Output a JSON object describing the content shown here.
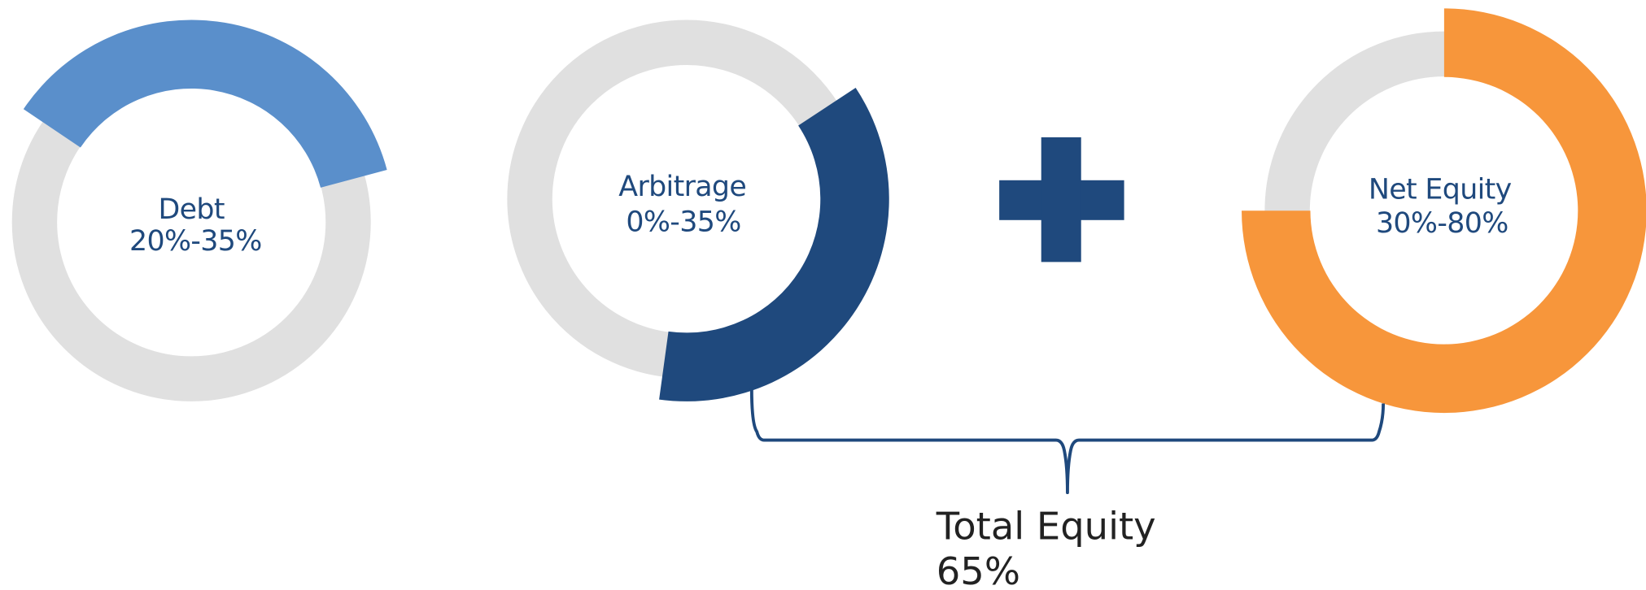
{
  "donuts": [
    {
      "label": "Debt",
      "range": "20%-35%"
    },
    {
      "label": "Arbitrage",
      "range": "0%-35%"
    },
    {
      "label": "Net Equity",
      "range": "30%-80%"
    }
  ],
  "total": {
    "label": "Total Equity",
    "value": "65%"
  }
}
